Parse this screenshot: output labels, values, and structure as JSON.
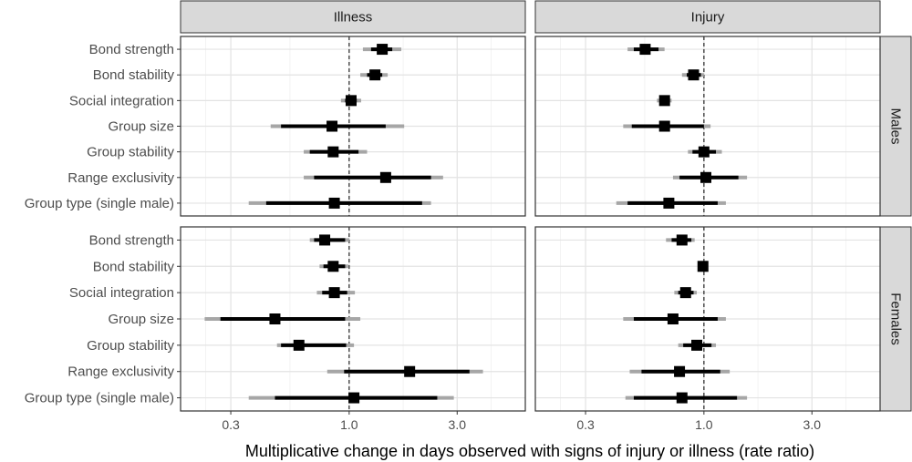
{
  "chart_data": {
    "type": "forest",
    "xlabel": "Multiplicative change in days observed with signs of injury or illness (rate ratio)",
    "xscale": "log",
    "xlim": [
      0.18,
      6.0
    ],
    "xticks": [
      0.3,
      1.0,
      3.0
    ],
    "xtick_labels": [
      "0.3",
      "1.0",
      "3.0"
    ],
    "reference_line": 1.0,
    "columns": [
      "Illness",
      "Injury"
    ],
    "rows": [
      "Males",
      "Females"
    ],
    "categories": [
      "Bond strength",
      "Bond stability",
      "Social integration",
      "Group size",
      "Group stability",
      "Range exclusivity",
      "Group type (single male)"
    ],
    "grid": true,
    "colors": {
      "thick_interval": "#000000",
      "thin_interval": "#a6a6a6",
      "strip_fill": "#d9d9d9",
      "reference": "#333333"
    },
    "panels": [
      {
        "row": "Males",
        "column": "Illness",
        "estimates": [
          {
            "est": 1.4,
            "lo50": 1.25,
            "hi50": 1.55,
            "lo95": 1.15,
            "hi95": 1.7
          },
          {
            "est": 1.3,
            "lo50": 1.2,
            "hi50": 1.4,
            "lo95": 1.12,
            "hi95": 1.48
          },
          {
            "est": 1.02,
            "lo50": 0.96,
            "hi50": 1.08,
            "lo95": 0.92,
            "hi95": 1.13
          },
          {
            "est": 0.84,
            "lo50": 0.5,
            "hi50": 1.45,
            "lo95": 0.45,
            "hi95": 1.75
          },
          {
            "est": 0.85,
            "lo50": 0.67,
            "hi50": 1.1,
            "lo95": 0.63,
            "hi95": 1.2
          },
          {
            "est": 1.45,
            "lo50": 0.7,
            "hi50": 2.3,
            "lo95": 0.63,
            "hi95": 2.6
          },
          {
            "est": 0.86,
            "lo50": 0.43,
            "hi50": 2.1,
            "lo95": 0.36,
            "hi95": 2.3
          }
        ]
      },
      {
        "row": "Males",
        "column": "Injury",
        "estimates": [
          {
            "est": 0.55,
            "lo50": 0.49,
            "hi50": 0.63,
            "lo95": 0.46,
            "hi95": 0.67
          },
          {
            "est": 0.9,
            "lo50": 0.84,
            "hi50": 0.97,
            "lo95": 0.8,
            "hi95": 1.0
          },
          {
            "est": 0.67,
            "lo50": 0.64,
            "hi50": 0.7,
            "lo95": 0.62,
            "hi95": 0.72
          },
          {
            "est": 0.67,
            "lo50": 0.48,
            "hi50": 1.0,
            "lo95": 0.44,
            "hi95": 1.07
          },
          {
            "est": 1.0,
            "lo50": 0.89,
            "hi50": 1.13,
            "lo95": 0.85,
            "hi95": 1.2
          },
          {
            "est": 1.02,
            "lo50": 0.78,
            "hi50": 1.42,
            "lo95": 0.73,
            "hi95": 1.55
          },
          {
            "est": 0.7,
            "lo50": 0.46,
            "hi50": 1.15,
            "lo95": 0.41,
            "hi95": 1.25
          }
        ]
      },
      {
        "row": "Females",
        "column": "Illness",
        "estimates": [
          {
            "est": 0.78,
            "lo50": 0.7,
            "hi50": 0.96,
            "lo95": 0.67,
            "hi95": 1.0
          },
          {
            "est": 0.85,
            "lo50": 0.77,
            "hi50": 0.96,
            "lo95": 0.74,
            "hi95": 0.99
          },
          {
            "est": 0.86,
            "lo50": 0.76,
            "hi50": 0.98,
            "lo95": 0.72,
            "hi95": 1.06
          },
          {
            "est": 0.47,
            "lo50": 0.27,
            "hi50": 0.96,
            "lo95": 0.23,
            "hi95": 1.12
          },
          {
            "est": 0.6,
            "lo50": 0.5,
            "hi50": 0.97,
            "lo95": 0.48,
            "hi95": 1.05
          },
          {
            "est": 1.85,
            "lo50": 0.95,
            "hi50": 3.4,
            "lo95": 0.8,
            "hi95": 3.9
          },
          {
            "est": 1.05,
            "lo50": 0.47,
            "hi50": 2.45,
            "lo95": 0.36,
            "hi95": 2.9
          }
        ]
      },
      {
        "row": "Females",
        "column": "Injury",
        "estimates": [
          {
            "est": 0.8,
            "lo50": 0.72,
            "hi50": 0.88,
            "lo95": 0.68,
            "hi95": 0.91
          },
          {
            "est": 0.99,
            "lo50": 0.96,
            "hi50": 1.02,
            "lo95": 0.95,
            "hi95": 1.03
          },
          {
            "est": 0.83,
            "lo50": 0.77,
            "hi50": 0.9,
            "lo95": 0.74,
            "hi95": 0.93
          },
          {
            "est": 0.73,
            "lo50": 0.49,
            "hi50": 1.15,
            "lo95": 0.44,
            "hi95": 1.25
          },
          {
            "est": 0.93,
            "lo50": 0.81,
            "hi50": 1.08,
            "lo95": 0.77,
            "hi95": 1.13
          },
          {
            "est": 0.78,
            "lo50": 0.53,
            "hi50": 1.18,
            "lo95": 0.47,
            "hi95": 1.3
          },
          {
            "est": 0.8,
            "lo50": 0.49,
            "hi50": 1.4,
            "lo95": 0.45,
            "hi95": 1.55
          }
        ]
      }
    ]
  }
}
